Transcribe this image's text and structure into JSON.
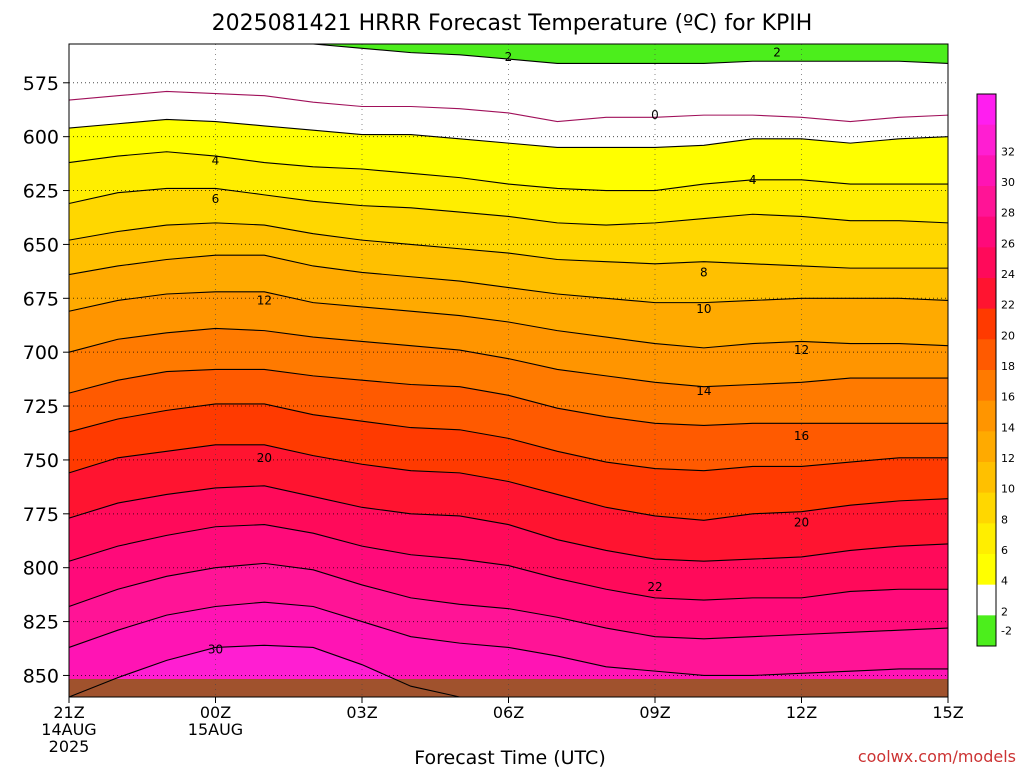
{
  "chart_data": {
    "type": "heatmap",
    "title": "2025081421 HRRR Forecast Temperature (ºC) for KPIH",
    "xlabel": "Forecast Time (UTC)",
    "ylabel": "",
    "credit": "coolwx.com/models",
    "y_reversed": true,
    "ylim": [
      557,
      860
    ],
    "xlim": [
      0,
      18
    ],
    "y_ticks": [
      575,
      600,
      625,
      650,
      675,
      700,
      725,
      750,
      775,
      800,
      825,
      850
    ],
    "x_ticks": [
      {
        "x": 0,
        "lines": [
          "21Z",
          "14AUG",
          "2025"
        ]
      },
      {
        "x": 3,
        "lines": [
          "00Z",
          "15AUG"
        ]
      },
      {
        "x": 6,
        "lines": [
          "03Z"
        ]
      },
      {
        "x": 9,
        "lines": [
          "06Z"
        ]
      },
      {
        "x": 12,
        "lines": [
          "09Z"
        ]
      },
      {
        "x": 15,
        "lines": [
          "12Z"
        ]
      },
      {
        "x": 18,
        "lines": [
          "15Z"
        ]
      }
    ],
    "colorbar": [
      {
        "level": -2,
        "label": "-2",
        "color": "#4cee1c"
      },
      {
        "level": 2,
        "label": "2",
        "color": "#ffffff"
      },
      {
        "level": 4,
        "label": "4",
        "color": "#ffff00"
      },
      {
        "level": 6,
        "label": "6",
        "color": "#ffee00"
      },
      {
        "level": 8,
        "label": "8",
        "color": "#ffd700"
      },
      {
        "level": 10,
        "label": "10",
        "color": "#ffc000"
      },
      {
        "level": 12,
        "label": "12",
        "color": "#ffaa00"
      },
      {
        "level": 14,
        "label": "14",
        "color": "#ff9500"
      },
      {
        "level": 16,
        "label": "16",
        "color": "#ff7a00"
      },
      {
        "level": 18,
        "label": "18",
        "color": "#ff5a00"
      },
      {
        "level": 20,
        "label": "20",
        "color": "#ff3a00"
      },
      {
        "level": 22,
        "label": "22",
        "color": "#ff1430"
      },
      {
        "level": 24,
        "label": "24",
        "color": "#ff0a5a"
      },
      {
        "level": 26,
        "label": "26",
        "color": "#ff0a7a"
      },
      {
        "level": 28,
        "label": "28",
        "color": "#ff1496"
      },
      {
        "level": 30,
        "label": "30",
        "color": "#ff14b4"
      },
      {
        "level": 32,
        "label": "32",
        "color": "#ff1ed2"
      },
      {
        "level": 34,
        "label": "",
        "color": "#ff1ef0"
      }
    ],
    "ground_color": "#a0522d",
    "series": [
      {
        "level": -2,
        "label": "-2",
        "p": [
          554,
          554,
          554,
          554,
          554,
          557,
          559,
          561,
          562,
          564,
          566,
          566,
          566,
          566,
          565,
          565,
          565,
          565,
          566
        ]
      },
      {
        "level": 0,
        "label": "0",
        "p": [
          583,
          581,
          579,
          580,
          581,
          584,
          586,
          586,
          587,
          589,
          593,
          591,
          591,
          590,
          590,
          591,
          593,
          591,
          590
        ]
      },
      {
        "level": 2,
        "label": "2",
        "p": [
          596,
          594,
          592,
          593,
          595,
          597,
          599,
          599,
          601,
          603,
          605,
          605,
          605,
          604,
          601,
          601,
          603,
          601,
          600
        ]
      },
      {
        "level": 4,
        "label": "4",
        "p": [
          612,
          609,
          607,
          609,
          612,
          614,
          615,
          617,
          619,
          622,
          624,
          625,
          625,
          622,
          620,
          620,
          622,
          622,
          622
        ]
      },
      {
        "level": 6,
        "label": "6",
        "p": [
          631,
          626,
          624,
          624,
          627,
          630,
          632,
          633,
          635,
          637,
          640,
          641,
          640,
          638,
          636,
          637,
          639,
          639,
          640
        ]
      },
      {
        "level": 8,
        "label": "8",
        "p": [
          648,
          644,
          641,
          640,
          641,
          645,
          648,
          650,
          652,
          654,
          657,
          658,
          659,
          658,
          659,
          660,
          661,
          661,
          661
        ]
      },
      {
        "level": 10,
        "label": "10",
        "p": [
          664,
          660,
          657,
          655,
          655,
          660,
          663,
          665,
          667,
          670,
          673,
          675,
          677,
          677,
          676,
          675,
          675,
          675,
          676
        ]
      },
      {
        "level": 12,
        "label": "12",
        "p": [
          681,
          676,
          673,
          672,
          672,
          677,
          679,
          681,
          683,
          686,
          690,
          693,
          696,
          698,
          696,
          695,
          696,
          696,
          697
        ]
      },
      {
        "level": 14,
        "label": "14",
        "p": [
          700,
          694,
          691,
          689,
          690,
          693,
          695,
          697,
          699,
          703,
          708,
          711,
          714,
          716,
          715,
          714,
          712,
          712,
          712
        ]
      },
      {
        "level": 16,
        "label": "16",
        "p": [
          719,
          713,
          709,
          708,
          708,
          711,
          713,
          715,
          716,
          720,
          726,
          730,
          733,
          734,
          733,
          733,
          733,
          733,
          733
        ]
      },
      {
        "level": 18,
        "label": "18",
        "p": [
          737,
          731,
          727,
          724,
          724,
          729,
          732,
          735,
          736,
          740,
          746,
          751,
          754,
          755,
          753,
          753,
          751,
          749,
          749
        ]
      },
      {
        "level": 20,
        "label": "20",
        "p": [
          756,
          749,
          746,
          743,
          743,
          748,
          752,
          755,
          756,
          760,
          766,
          772,
          776,
          778,
          775,
          774,
          771,
          769,
          768
        ]
      },
      {
        "level": 22,
        "label": "22",
        "p": [
          777,
          770,
          766,
          763,
          762,
          767,
          772,
          775,
          776,
          780,
          787,
          792,
          796,
          797,
          796,
          795,
          792,
          790,
          789
        ]
      },
      {
        "level": 24,
        "label": "24",
        "p": [
          797,
          790,
          785,
          781,
          780,
          784,
          790,
          794,
          796,
          799,
          805,
          810,
          814,
          815,
          814,
          814,
          811,
          810,
          810
        ]
      },
      {
        "level": 26,
        "label": "26",
        "p": [
          818,
          810,
          804,
          800,
          798,
          801,
          808,
          814,
          817,
          819,
          823,
          828,
          832,
          833,
          832,
          831,
          830,
          829,
          828
        ]
      },
      {
        "level": 28,
        "label": "28",
        "p": [
          837,
          829,
          822,
          818,
          816,
          818,
          825,
          832,
          835,
          837,
          841,
          846,
          848,
          850,
          850,
          849,
          848,
          847,
          847
        ]
      },
      {
        "level": 30,
        "label": "30",
        "p": [
          862,
          851,
          843,
          837,
          836,
          837,
          845,
          855,
          862,
          864,
          864,
          864,
          864,
          864,
          864,
          864,
          864,
          864,
          864
        ]
      }
    ],
    "contour_labels": [
      {
        "level": 2,
        "x": 9,
        "p": 563,
        "text": "2"
      },
      {
        "level": 2,
        "x": 14.5,
        "p": 561,
        "text": "2"
      },
      {
        "level": 0,
        "x": 12,
        "p": 590,
        "text": "0"
      },
      {
        "level": 4,
        "x": 3,
        "p": 611,
        "text": "4"
      },
      {
        "level": 4,
        "x": 14,
        "p": 620,
        "text": "4"
      },
      {
        "level": 6,
        "x": 3,
        "p": 629,
        "text": "6"
      },
      {
        "level": 8,
        "x": 13,
        "p": 663,
        "text": "8"
      },
      {
        "level": 10,
        "x": 13,
        "p": 680,
        "text": "10"
      },
      {
        "level": 12,
        "x": 4,
        "p": 676,
        "text": "12"
      },
      {
        "level": 12,
        "x": 15,
        "p": 699,
        "text": "12"
      },
      {
        "level": 14,
        "x": 13,
        "p": 718,
        "text": "14"
      },
      {
        "level": 16,
        "x": 15,
        "p": 739,
        "text": "16"
      },
      {
        "level": 20,
        "x": 4,
        "p": 749,
        "text": "20"
      },
      {
        "level": 20,
        "x": 15,
        "p": 779,
        "text": "20"
      },
      {
        "level": 22,
        "x": 12,
        "p": 809,
        "text": "22"
      },
      {
        "level": 30,
        "x": 3,
        "p": 838,
        "text": "30"
      }
    ],
    "grid": true
  }
}
